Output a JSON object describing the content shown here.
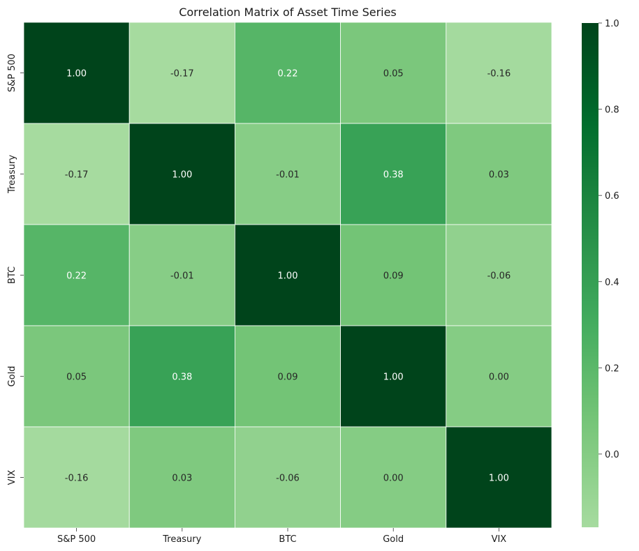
{
  "chart_data": {
    "type": "heatmap",
    "title": "Correlation Matrix of Asset Time Series",
    "xlabel": "",
    "ylabel": "",
    "x_categories": [
      "S&P 500",
      "Treasury",
      "BTC",
      "Gold",
      "VIX"
    ],
    "y_categories": [
      "S&P 500",
      "Treasury",
      "BTC",
      "Gold",
      "VIX"
    ],
    "values": [
      [
        1.0,
        -0.17,
        0.22,
        0.05,
        -0.16
      ],
      [
        -0.17,
        1.0,
        -0.01,
        0.38,
        0.03
      ],
      [
        0.22,
        -0.01,
        1.0,
        0.09,
        -0.06
      ],
      [
        0.05,
        0.38,
        0.09,
        1.0,
        0.0
      ],
      [
        -0.16,
        0.03,
        -0.06,
        0.0,
        1.0
      ]
    ],
    "value_format": "0.00",
    "colormap": "Greens",
    "vmin": -0.17,
    "vmax": 1.0,
    "colorbar": {
      "ticks": [
        0.0,
        0.2,
        0.4,
        0.6,
        0.8,
        1.0
      ],
      "tick_labels": [
        "0.0",
        "0.2",
        "0.4",
        "0.6",
        "0.8",
        "1.0"
      ],
      "position": "right"
    },
    "grid": false
  }
}
